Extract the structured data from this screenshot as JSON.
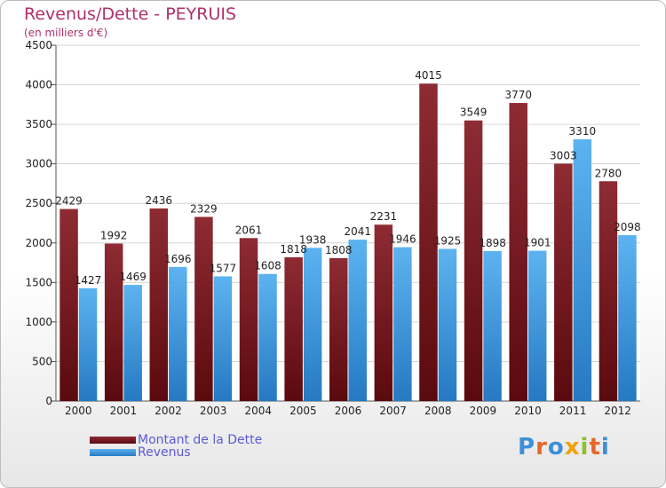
{
  "chart_data": {
    "type": "bar",
    "title": "Revenus/Dette - PEYRUIS",
    "subtitle": "(en milliers d'€)",
    "categories": [
      "2000",
      "2001",
      "2002",
      "2003",
      "2004",
      "2005",
      "2006",
      "2007",
      "2008",
      "2009",
      "2010",
      "2011",
      "2012"
    ],
    "series": [
      {
        "name": "Montant de la Dette",
        "color": "#7a1e24",
        "values": [
          2429,
          1992,
          2436,
          2329,
          2061,
          1818,
          1808,
          2231,
          4015,
          3549,
          3770,
          3003,
          2780
        ]
      },
      {
        "name": "Revenus",
        "color": "#3d9be0",
        "values": [
          1427,
          1469,
          1696,
          1577,
          1608,
          1938,
          2041,
          1946,
          1925,
          1898,
          1901,
          3310,
          2098
        ]
      }
    ],
    "ylim": [
      0,
      4500
    ],
    "yticks": [
      0,
      500,
      1000,
      1500,
      2000,
      2500,
      3000,
      3500,
      4000,
      4500
    ],
    "grid": true,
    "legend": "bottom-left"
  },
  "logo": {
    "text": "Proxiti"
  }
}
